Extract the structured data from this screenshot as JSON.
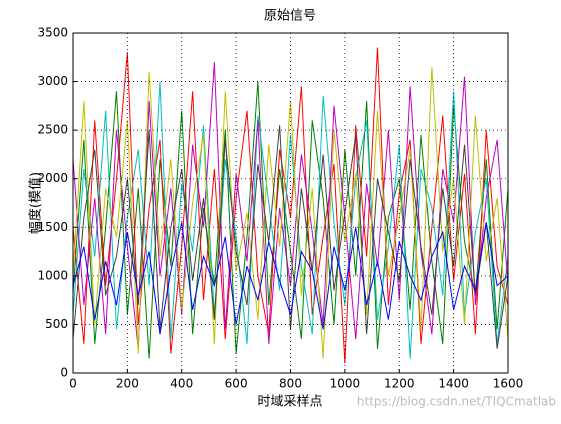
{
  "chart_data": {
    "type": "line",
    "title": "原始信号",
    "x_label": "时域采样点",
    "y_label": "幅度(模值)",
    "watermark": "https://blog.csdn.net/TIQCmatlab",
    "x": [
      0,
      40,
      80,
      120,
      160,
      200,
      240,
      280,
      320,
      360,
      400,
      440,
      480,
      520,
      560,
      600,
      640,
      680,
      720,
      760,
      800,
      840,
      880,
      920,
      960,
      1000,
      1040,
      1080,
      1120,
      1160,
      1200,
      1240,
      1280,
      1320,
      1360,
      1400,
      1440,
      1480,
      1520,
      1560,
      1600
    ],
    "series": [
      {
        "color": "#008000",
        "values": [
          820,
          2400,
          300,
          1500,
          2900,
          600,
          1900,
          150,
          2200,
          1100,
          2700,
          400,
          1700,
          900,
          2500,
          200,
          1400,
          3000,
          700,
          2100,
          1250,
          350,
          2600,
          1800,
          500,
          2300,
          1000,
          2800,
          250,
          1600,
          2000,
          650,
          2450,
          1150,
          300,
          2750,
          1350,
          800,
          2200,
          450,
          1900
        ]
      },
      {
        "color": "#ff0000",
        "values": [
          1500,
          300,
          2600,
          900,
          2000,
          3300,
          500,
          1700,
          2400,
          200,
          1300,
          2900,
          750,
          2100,
          350,
          1800,
          2700,
          1000,
          400,
          2300,
          1600,
          2950,
          600,
          1400,
          2150,
          100,
          2550,
          1200,
          3350,
          700,
          1850,
          2400,
          300,
          1500,
          2650,
          950,
          2050,
          400,
          2500,
          1100,
          700
        ]
      },
      {
        "color": "#00bfbf",
        "values": [
          600,
          2100,
          1200,
          2700,
          450,
          1600,
          2300,
          900,
          3000,
          350,
          1950,
          1250,
          2550,
          600,
          2200,
          1400,
          300,
          2650,
          1750,
          850,
          2450,
          1100,
          400,
          2850,
          1550,
          700,
          2000,
          2600,
          550,
          1300,
          2350,
          150,
          2100,
          1700,
          800,
          2900,
          600,
          1450,
          2000,
          300,
          1200
        ]
      },
      {
        "color": "#bf00bf",
        "values": [
          2200,
          700,
          1800,
          400,
          2500,
          1300,
          250,
          2800,
          1000,
          1900,
          600,
          2350,
          1500,
          3200,
          450,
          2050,
          1150,
          2600,
          300,
          1700,
          900,
          2250,
          1450,
          500,
          2750,
          1600,
          350,
          1950,
          1100,
          2500,
          750,
          2950,
          1250,
          400,
          2100,
          1550,
          3050,
          700,
          1800,
          2400,
          900
        ]
      },
      {
        "color": "#bfbf00",
        "values": [
          1000,
          2800,
          500,
          1900,
          1400,
          2600,
          200,
          3100,
          1200,
          2200,
          650,
          1750,
          2450,
          300,
          2900,
          1050,
          1650,
          550,
          2350,
          1300,
          2800,
          800,
          1900,
          150,
          2500,
          1350,
          2050,
          600,
          2700,
          1000,
          1600,
          2300,
          450,
          3150,
          1250,
          2000,
          500,
          2650,
          1150,
          1800,
          350
        ]
      },
      {
        "color": "#404040",
        "values": [
          350,
          1600,
          2300,
          800,
          1200,
          2000,
          700,
          2500,
          450,
          1500,
          2100,
          950,
          1800,
          550,
          2400,
          1250,
          700,
          2150,
          1350,
          2550,
          450,
          1900,
          1050,
          2250,
          850,
          1650,
          2450,
          400,
          2000,
          1450,
          950,
          2200,
          1300,
          600,
          1900,
          1100,
          2350,
          800,
          1550,
          250,
          1000
        ]
      },
      {
        "color": "#0000ff",
        "values": [
          900,
          1300,
          550,
          1150,
          700,
          1450,
          800,
          1250,
          400,
          1050,
          1550,
          650,
          1200,
          900,
          1400,
          500,
          1100,
          750,
          1350,
          950,
          600,
          1250,
          1050,
          450,
          1300,
          850,
          1500,
          700,
          1150,
          550,
          1350,
          1000,
          750,
          1200,
          1450,
          650,
          1100,
          850,
          1550,
          900,
          1000
        ]
      }
    ],
    "xlim": [
      0,
      1600
    ],
    "xticks": [
      0,
      200,
      400,
      600,
      800,
      1000,
      1200,
      1400,
      1600
    ],
    "ylim": [
      0,
      3500
    ],
    "yticks": [
      0,
      500,
      1000,
      1500,
      2000,
      2500,
      3000,
      3500
    ],
    "grid": true
  }
}
